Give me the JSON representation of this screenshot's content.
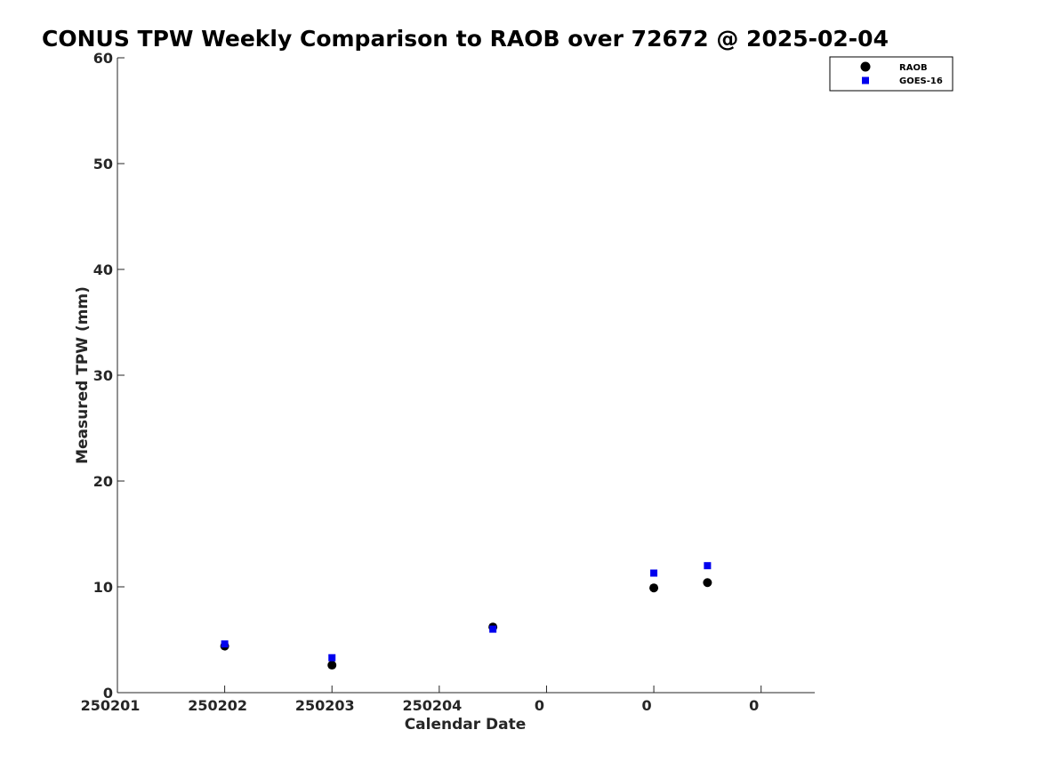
{
  "chart_data": {
    "type": "scatter",
    "title": "CONUS TPW Weekly Comparison to RAOB over 72672 @ 2025-02-04",
    "xlabel": "Calendar Date",
    "ylabel": "Measured TPW (mm)",
    "xlim": [
      0,
      6.5
    ],
    "ylim": [
      0,
      60
    ],
    "x_ticks": [
      {
        "value": 0,
        "label": "250201"
      },
      {
        "value": 1,
        "label": "250202"
      },
      {
        "value": 2,
        "label": "250203"
      },
      {
        "value": 3,
        "label": "250204"
      },
      {
        "value": 4,
        "label": "0"
      },
      {
        "value": 5,
        "label": "0"
      },
      {
        "value": 6,
        "label": "0"
      }
    ],
    "y_ticks": [
      0,
      10,
      20,
      30,
      40,
      50,
      60
    ],
    "grid": false,
    "legend_position": "top-right",
    "series": [
      {
        "name": "RAOB",
        "marker": "circle",
        "color": "#000000",
        "points": [
          {
            "x": 1.0,
            "y": 4.4
          },
          {
            "x": 2.0,
            "y": 2.6
          },
          {
            "x": 3.5,
            "y": 6.2
          },
          {
            "x": 5.0,
            "y": 9.9
          },
          {
            "x": 5.5,
            "y": 10.4
          }
        ]
      },
      {
        "name": "GOES-16",
        "marker": "square",
        "color": "#0000ee",
        "points": [
          {
            "x": 1.0,
            "y": 4.6
          },
          {
            "x": 2.0,
            "y": 3.3
          },
          {
            "x": 3.5,
            "y": 6.0
          },
          {
            "x": 5.0,
            "y": 11.3
          },
          {
            "x": 5.5,
            "y": 12.0
          }
        ]
      }
    ]
  }
}
